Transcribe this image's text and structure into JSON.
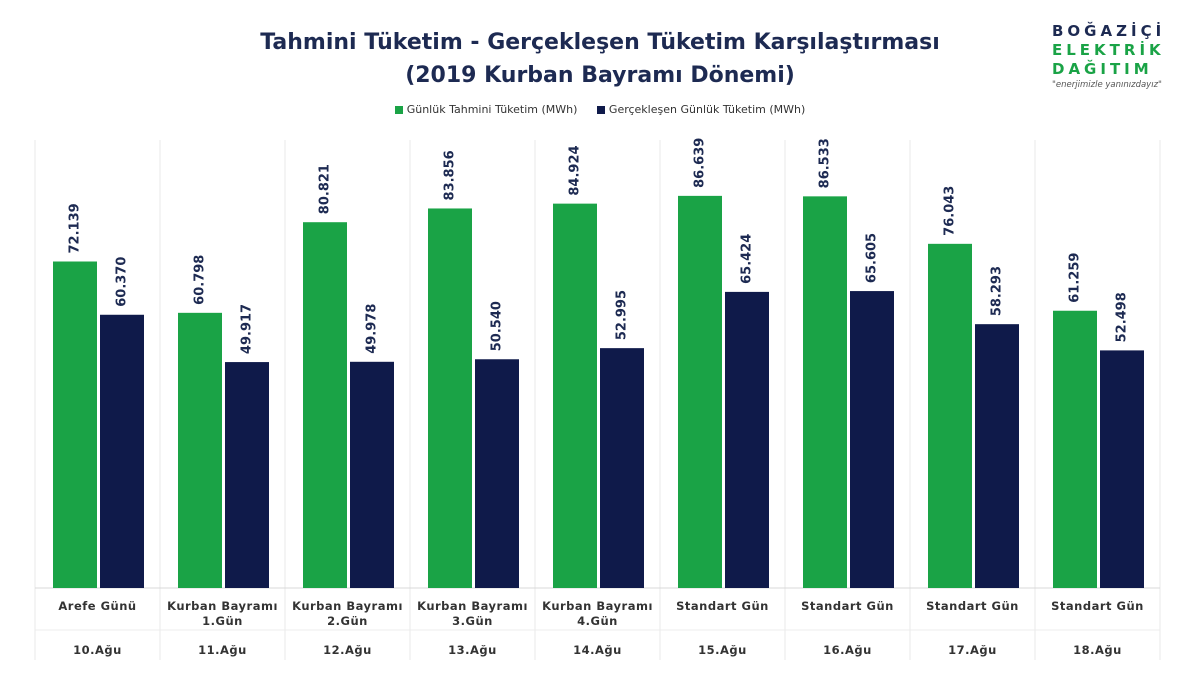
{
  "chart_data": {
    "type": "bar",
    "title_line1": "Tahmini Tüketim - Gerçekleşen Tüketim Karşılaştırması",
    "title_line2": "(2019 Kurban Bayramı Dönemi)",
    "ylim": [
      0,
      100
    ],
    "categories": [
      {
        "line1": "Arefe Günü",
        "line2": "",
        "date": "10.Ağu"
      },
      {
        "line1": "Kurban Bayramı",
        "line2": "1.Gün",
        "date": "11.Ağu"
      },
      {
        "line1": "Kurban Bayramı",
        "line2": "2.Gün",
        "date": "12.Ağu"
      },
      {
        "line1": "Kurban Bayramı",
        "line2": "3.Gün",
        "date": "13.Ağu"
      },
      {
        "line1": "Kurban Bayramı",
        "line2": "4.Gün",
        "date": "14.Ağu"
      },
      {
        "line1": "Standart Gün",
        "line2": "",
        "date": "15.Ağu"
      },
      {
        "line1": "Standart Gün",
        "line2": "",
        "date": "16.Ağu"
      },
      {
        "line1": "Standart Gün",
        "line2": "",
        "date": "17.Ağu"
      },
      {
        "line1": "Standart Gün",
        "line2": "",
        "date": "18.Ağu"
      }
    ],
    "series": [
      {
        "name": "Günlük Tahmini Tüketim (MWh)",
        "color": "#1aa346",
        "values": [
          72.139,
          60.798,
          80.821,
          83.856,
          84.924,
          86.639,
          86.533,
          76.043,
          61.259
        ],
        "labels": [
          "72.139",
          "60.798",
          "80.821",
          "83.856",
          "84.924",
          "86.639",
          "86.533",
          "76.043",
          "61.259"
        ]
      },
      {
        "name": "Gerçekleşen Günlük Tüketim (MWh)",
        "color": "#0f1a4a",
        "values": [
          60.37,
          49.917,
          49.978,
          50.54,
          52.995,
          65.424,
          65.605,
          58.293,
          52.498
        ],
        "labels": [
          "60.370",
          "49.917",
          "49.978",
          "50.540",
          "52.995",
          "65.424",
          "65.605",
          "58.293",
          "52.498"
        ]
      }
    ]
  },
  "logo": {
    "line1": "BOĞAZİÇİ",
    "line2": "ELEKTRİK",
    "line3": "DAĞITIM",
    "tagline": "\"enerjimizle yanınızdayız\"",
    "colors": {
      "navy": "#1d2a52",
      "green": "#1aa346"
    }
  }
}
